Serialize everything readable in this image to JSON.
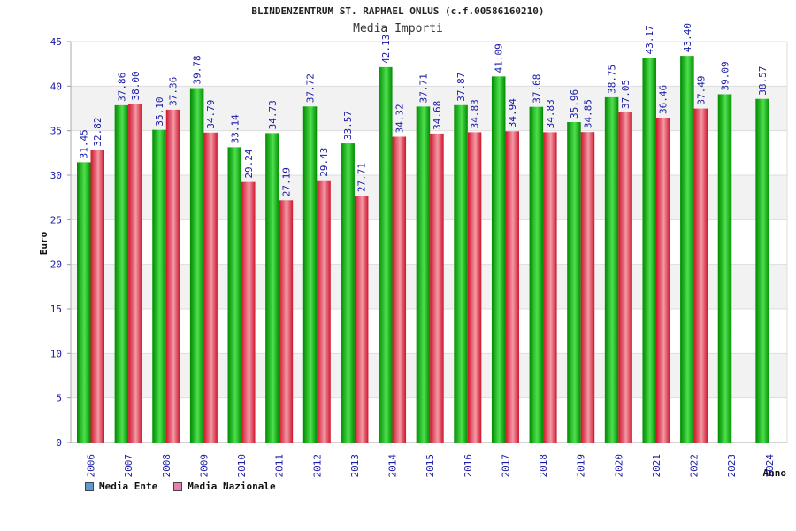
{
  "chart_data": {
    "type": "bar",
    "title": "BLINDENZENTRUM ST. RAPHAEL ONLUS (c.f.00586160210)",
    "subtitle": "Media Importi",
    "xlabel": "Anno",
    "ylabel": "Euro",
    "ylim": [
      0,
      45
    ],
    "yticks": [
      "0",
      "5",
      "10",
      "15",
      "20",
      "25",
      "30",
      "35",
      "40",
      "45"
    ],
    "categories": [
      "2006",
      "2007",
      "2008",
      "2009",
      "2010",
      "2011",
      "2012",
      "2013",
      "2014",
      "2015",
      "2016",
      "2017",
      "2018",
      "2019",
      "2020",
      "2021",
      "2022",
      "2023",
      "2024"
    ],
    "series": [
      {
        "name": "Media Ente",
        "values": [
          31.45,
          37.86,
          35.1,
          39.78,
          33.14,
          34.73,
          37.72,
          33.57,
          42.13,
          37.71,
          37.87,
          41.09,
          37.68,
          35.96,
          38.75,
          43.17,
          43.4,
          39.09,
          38.57
        ],
        "labels": [
          "31.45",
          "37.86",
          "35.10",
          "39.78",
          "33.14",
          "34.73",
          "37.72",
          "33.57",
          "42.13",
          "37.71",
          "37.87",
          "41.09",
          "37.68",
          "35.96",
          "38.75",
          "43.17",
          "43.40",
          "39.09",
          "38.57"
        ]
      },
      {
        "name": "Media Nazionale",
        "values": [
          32.82,
          38.0,
          37.36,
          34.79,
          29.24,
          27.19,
          29.43,
          27.71,
          34.32,
          34.68,
          34.83,
          34.94,
          34.83,
          34.85,
          37.05,
          36.46,
          37.49,
          null,
          null
        ],
        "labels": [
          "32.82",
          "38.00",
          "37.36",
          "34.79",
          "29.24",
          "27.19",
          "29.43",
          "27.71",
          "34.32",
          "34.68",
          "34.83",
          "34.94",
          "34.83",
          "34.85",
          "37.05",
          "36.46",
          "37.49",
          null,
          null
        ]
      }
    ],
    "legend": [
      {
        "label": "Media Ente",
        "color": "#5b9bd5"
      },
      {
        "label": "Media Nazionale",
        "color": "#e87fb1"
      }
    ],
    "colors": {
      "ente_dark": "#008a00",
      "ente_light": "#4ee04e",
      "naz_dark": "#d0142c",
      "naz_light": "#f29aa6",
      "tick_label": "#1a1aa6",
      "band": "#f2f2f2",
      "grid": "#dddddd"
    }
  }
}
